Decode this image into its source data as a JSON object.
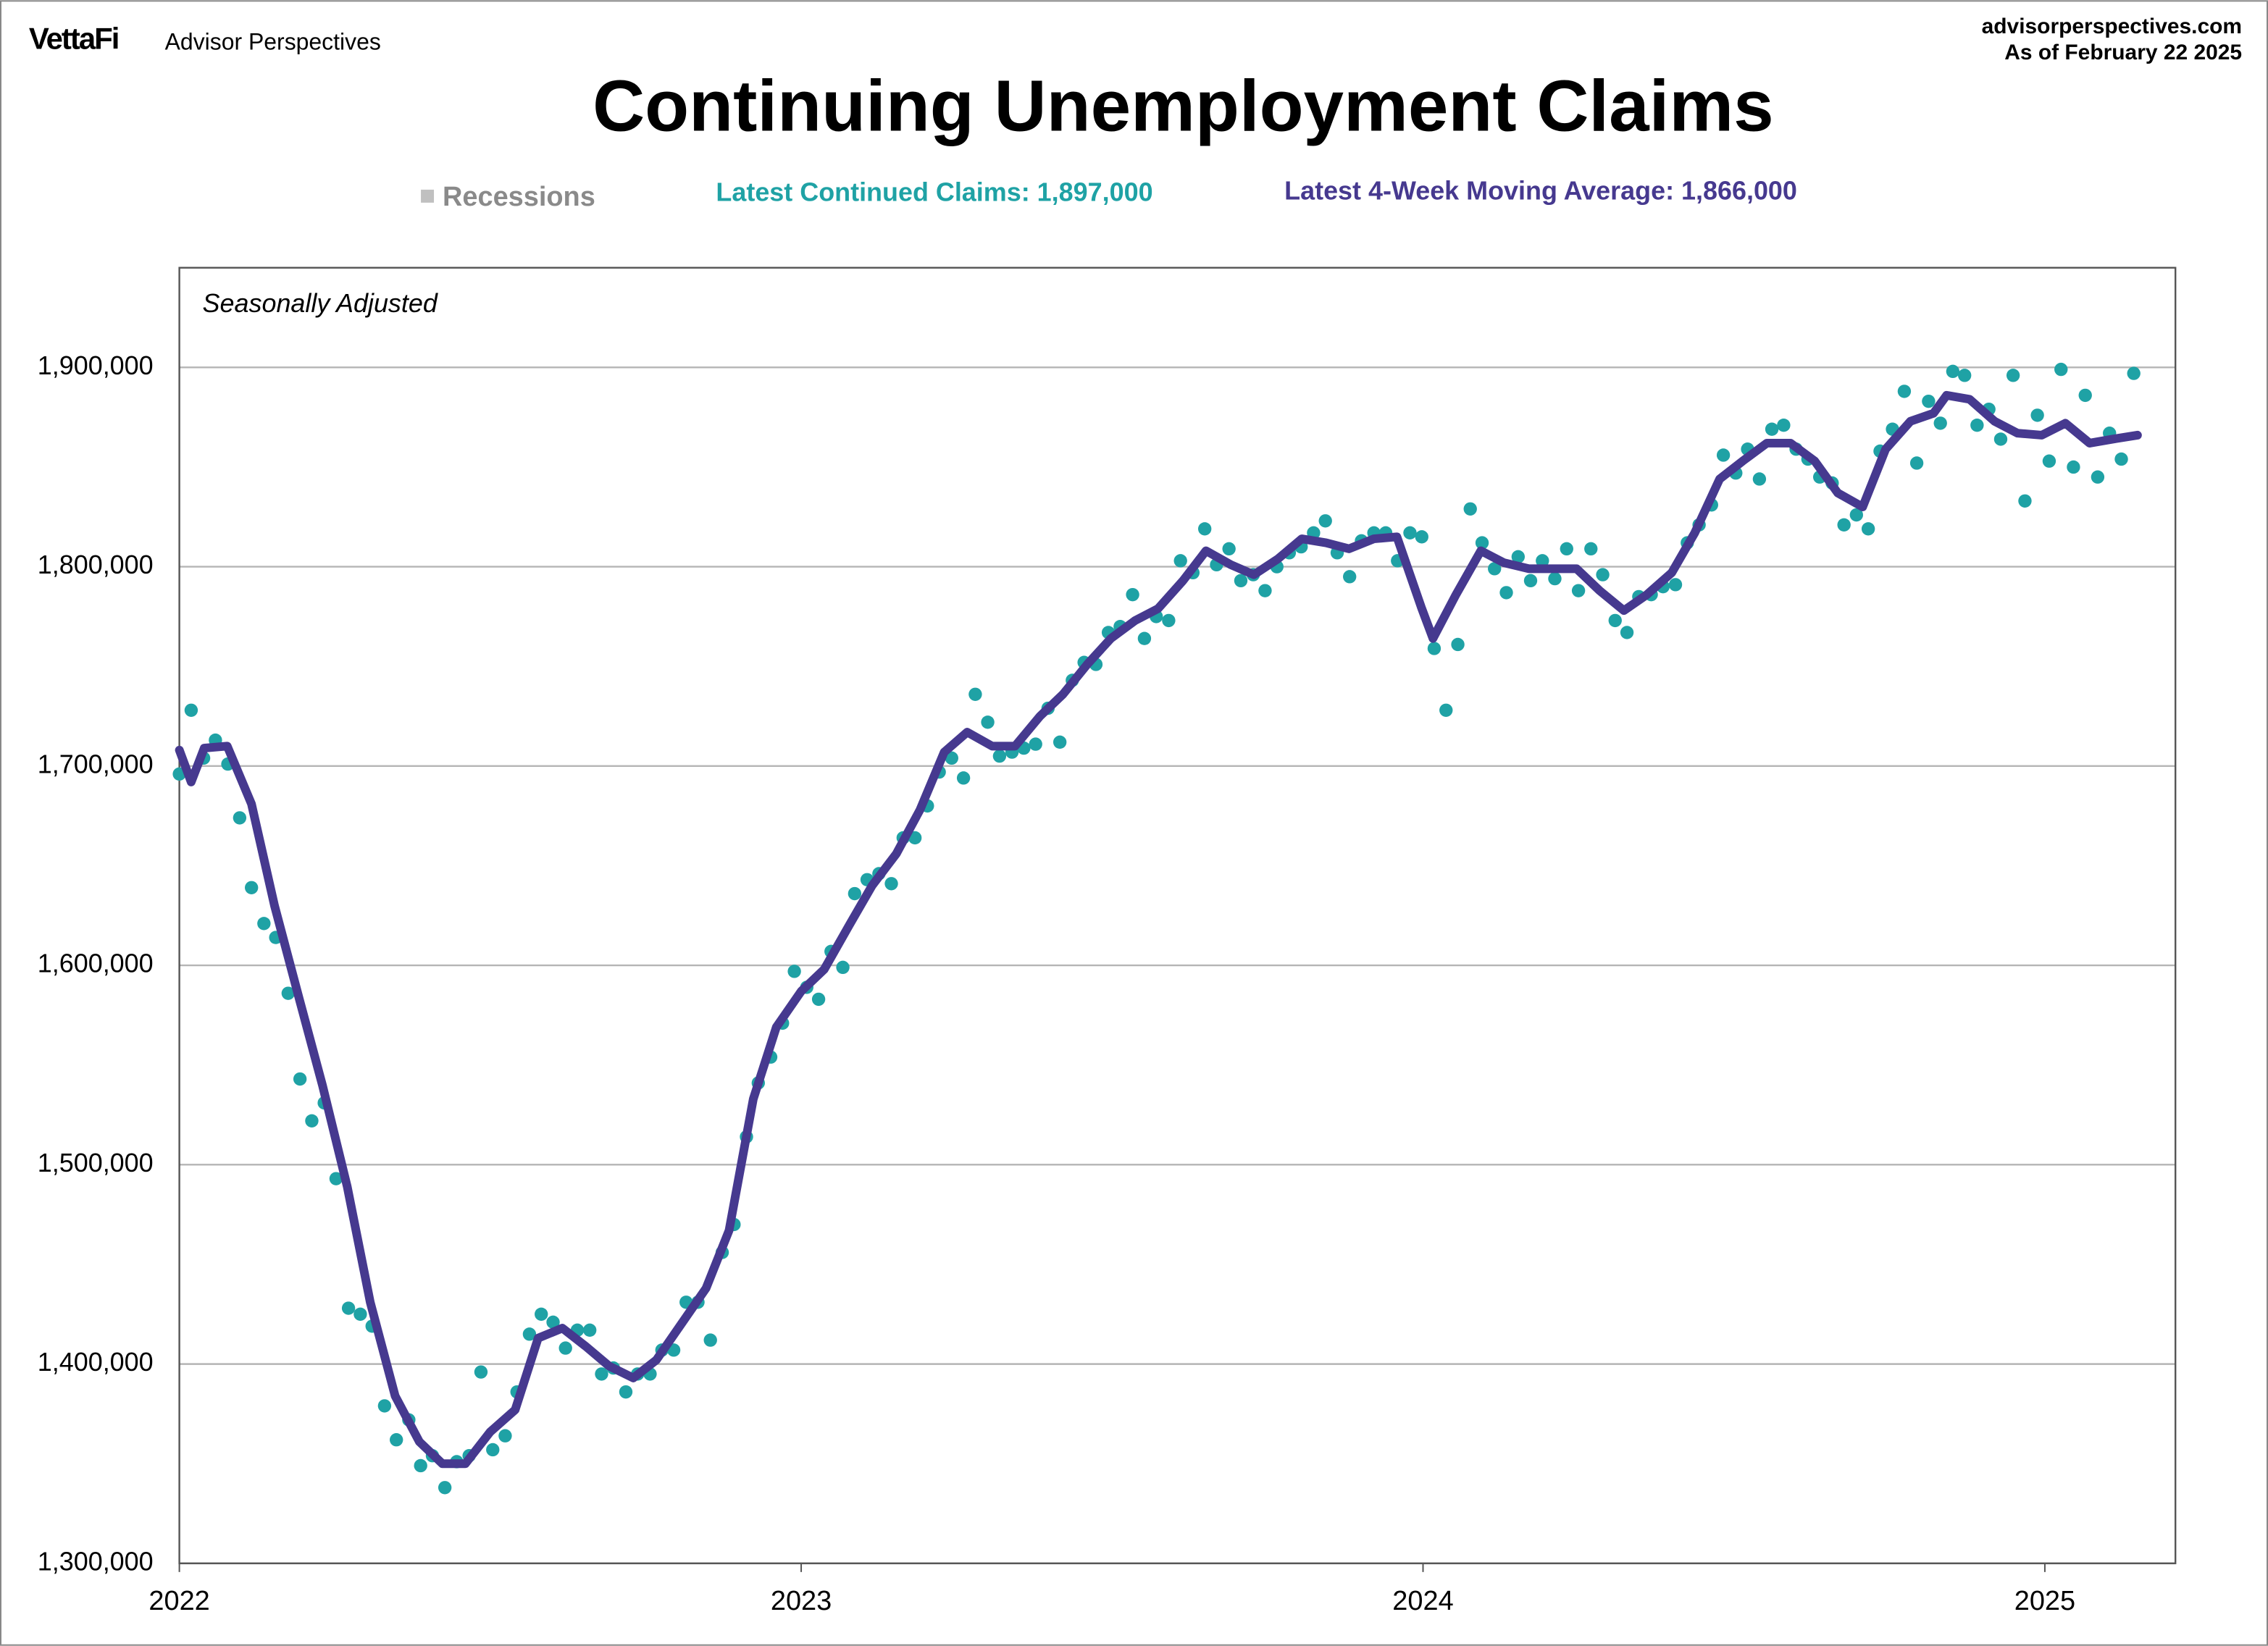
{
  "header": {
    "brand": "VettaFi",
    "publisher": "Advisor Perspectives",
    "site": "advisorperspectives.com",
    "as_of": "As of February 22 2025"
  },
  "chart_data": {
    "type": "line",
    "title": "Continuing Unemployment Claims",
    "annotation": "Seasonally Adjusted",
    "recessions_label": "Recessions",
    "recessions_color": "#c0c0c0",
    "xlim": [
      2022,
      2025.21
    ],
    "xticks": [
      2022,
      2023,
      2024,
      2025
    ],
    "ylim": [
      1300000,
      1950000
    ],
    "yticks": [
      {
        "value": 1300000,
        "label": "1,300,000"
      },
      {
        "value": 1400000,
        "label": "1,400,000"
      },
      {
        "value": 1500000,
        "label": "1,500,000"
      },
      {
        "value": 1600000,
        "label": "1,600,000"
      },
      {
        "value": 1700000,
        "label": "1,700,000"
      },
      {
        "value": 1800000,
        "label": "1,800,000"
      },
      {
        "value": 1900000,
        "label": "1,900,000"
      }
    ],
    "grid": true,
    "series": [
      {
        "name": "Latest Continued Claims: 1,897,000",
        "type": "scatter",
        "color": "#1fa2a5",
        "x": [
          2022,
          2022.019,
          2022.039,
          2022.058,
          2022.078,
          2022.097,
          2022.116,
          2022.136,
          2022.155,
          2022.175,
          2022.194,
          2022.213,
          2022.233,
          2022.252,
          2022.272,
          2022.291,
          2022.31,
          2022.33,
          2022.349,
          2022.369,
          2022.388,
          2022.407,
          2022.427,
          2022.446,
          2022.466,
          2022.485,
          2022.504,
          2022.524,
          2022.543,
          2022.563,
          2022.582,
          2022.601,
          2022.621,
          2022.64,
          2022.66,
          2022.679,
          2022.698,
          2022.718,
          2022.737,
          2022.757,
          2022.776,
          2022.795,
          2022.815,
          2022.834,
          2022.854,
          2022.873,
          2022.892,
          2022.912,
          2022.931,
          2022.951,
          2022.97,
          2022.989,
          2023.009,
          2023.028,
          2023.048,
          2023.067,
          2023.086,
          2023.106,
          2023.125,
          2023.145,
          2023.164,
          2023.183,
          2023.203,
          2023.222,
          2023.242,
          2023.261,
          2023.28,
          2023.3,
          2023.319,
          2023.339,
          2023.358,
          2023.377,
          2023.397,
          2023.416,
          2023.436,
          2023.455,
          2023.474,
          2023.494,
          2023.513,
          2023.533,
          2023.552,
          2023.571,
          2023.591,
          2023.61,
          2023.63,
          2023.649,
          2023.668,
          2023.688,
          2023.707,
          2023.727,
          2023.746,
          2023.765,
          2023.785,
          2023.804,
          2023.824,
          2023.843,
          2023.862,
          2023.882,
          2023.901,
          2023.921,
          2023.94,
          2023.959,
          2023.979,
          2023.998,
          2024.018,
          2024.037,
          2024.056,
          2024.076,
          2024.095,
          2024.115,
          2024.134,
          2024.153,
          2024.173,
          2024.192,
          2024.212,
          2024.231,
          2024.25,
          2024.27,
          2024.289,
          2024.309,
          2024.328,
          2024.347,
          2024.367,
          2024.386,
          2024.406,
          2024.425,
          2024.444,
          2024.464,
          2024.483,
          2024.503,
          2024.522,
          2024.541,
          2024.561,
          2024.58,
          2024.6,
          2024.619,
          2024.638,
          2024.658,
          2024.677,
          2024.697,
          2024.716,
          2024.735,
          2024.755,
          2024.774,
          2024.794,
          2024.813,
          2024.832,
          2024.852,
          2024.871,
          2024.891,
          2024.91,
          2024.929,
          2024.949,
          2024.968,
          2024.988,
          2025.007,
          2025.026,
          2025.046,
          2025.065,
          2025.085,
          2025.104,
          2025.123,
          2025.143
        ],
        "values": [
          1696000,
          1728000,
          1704000,
          1713000,
          1701000,
          1674000,
          1639000,
          1621000,
          1614000,
          1586000,
          1543000,
          1522000,
          1531000,
          1493000,
          1428000,
          1425000,
          1419000,
          1379000,
          1362000,
          1372000,
          1349000,
          1354000,
          1338000,
          1351000,
          1354000,
          1396000,
          1357000,
          1364000,
          1386000,
          1415000,
          1425000,
          1421000,
          1408000,
          1417000,
          1417000,
          1395000,
          1398000,
          1386000,
          1395000,
          1395000,
          1407000,
          1407000,
          1431000,
          1431000,
          1412000,
          1456000,
          1470000,
          1514000,
          1541000,
          1554000,
          1571000,
          1597000,
          1589000,
          1583000,
          1607000,
          1599000,
          1636000,
          1643000,
          1646000,
          1641000,
          1664000,
          1664000,
          1680000,
          1697000,
          1704000,
          1694000,
          1736000,
          1722000,
          1705000,
          1707000,
          1709000,
          1711000,
          1729000,
          1712000,
          1743000,
          1752000,
          1751000,
          1767000,
          1770000,
          1786000,
          1764000,
          1775000,
          1773000,
          1803000,
          1797000,
          1819000,
          1801000,
          1809000,
          1793000,
          1796000,
          1788000,
          1800000,
          1807000,
          1810000,
          1817000,
          1823000,
          1807000,
          1795000,
          1813000,
          1817000,
          1817000,
          1803000,
          1817000,
          1815000,
          1759000,
          1728000,
          1761000,
          1829000,
          1812000,
          1799000,
          1787000,
          1805000,
          1793000,
          1803000,
          1794000,
          1809000,
          1788000,
          1809000,
          1796000,
          1773000,
          1767000,
          1785000,
          1786000,
          1790000,
          1791000,
          1812000,
          1821000,
          1831000,
          1856000,
          1847000,
          1859000,
          1844000,
          1869000,
          1871000,
          1859000,
          1854000,
          1845000,
          1842000,
          1821000,
          1826000,
          1819000,
          1858000,
          1869000,
          1888000,
          1852000,
          1883000,
          1872000,
          1898000,
          1896000,
          1871000,
          1879000,
          1864000,
          1896000,
          1833000,
          1876000,
          1853000,
          1899000,
          1850000,
          1886000,
          1845000,
          1867000,
          1854000,
          1897000
        ]
      },
      {
        "name": "Latest 4-Week Moving Average: 1,866,000",
        "type": "line",
        "color": "#46398f",
        "x": [
          2022,
          2022.019,
          2022.04,
          2022.077,
          2022.116,
          2022.153,
          2022.193,
          2022.23,
          2022.27,
          2022.307,
          2022.347,
          2022.386,
          2022.423,
          2022.46,
          2022.5,
          2022.54,
          2022.577,
          2022.616,
          2022.653,
          2022.691,
          2022.73,
          2022.767,
          2022.807,
          2022.847,
          2022.884,
          2022.923,
          2022.96,
          2023,
          2023.037,
          2023.077,
          2023.114,
          2023.153,
          2023.191,
          2023.23,
          2023.267,
          2023.307,
          2023.344,
          2023.384,
          2023.421,
          2023.46,
          2023.498,
          2023.537,
          2023.574,
          2023.614,
          2023.651,
          2023.691,
          2023.728,
          2023.767,
          2023.805,
          2023.844,
          2023.881,
          2023.921,
          2023.958,
          2023.998,
          2024.016,
          2024.053,
          2024.093,
          2024.13,
          2024.17,
          2024.207,
          2024.247,
          2024.284,
          2024.323,
          2024.36,
          2024.4,
          2024.437,
          2024.477,
          2024.514,
          2024.553,
          2024.591,
          2024.63,
          2024.667,
          2024.707,
          2024.744,
          2024.784,
          2024.821,
          2024.842,
          2024.879,
          2024.919,
          2024.956,
          2024.995,
          2025.033,
          2025.072,
          2025.109,
          2025.149
        ],
        "values": [
          1708000,
          1692000,
          1709000,
          1710000,
          1681000,
          1630000,
          1583000,
          1540000,
          1489000,
          1431000,
          1384000,
          1361000,
          1350000,
          1350000,
          1366000,
          1377000,
          1413000,
          1418000,
          1409000,
          1399000,
          1393000,
          1402000,
          1420000,
          1438000,
          1467000,
          1533000,
          1569000,
          1587000,
          1598000,
          1620000,
          1640000,
          1656000,
          1678000,
          1707000,
          1717000,
          1710000,
          1710000,
          1725000,
          1736000,
          1751000,
          1764000,
          1773000,
          1779000,
          1793000,
          1808000,
          1801000,
          1796000,
          1804000,
          1814000,
          1812000,
          1809000,
          1814000,
          1815000,
          1779000,
          1764000,
          1786000,
          1808000,
          1802000,
          1799000,
          1799000,
          1799000,
          1788000,
          1778000,
          1786000,
          1797000,
          1817000,
          1844000,
          1853000,
          1862000,
          1862000,
          1853000,
          1837000,
          1830000,
          1859000,
          1873000,
          1877000,
          1886000,
          1884000,
          1873000,
          1867000,
          1866000,
          1872000,
          1862000,
          1864000,
          1866000
        ]
      }
    ]
  }
}
